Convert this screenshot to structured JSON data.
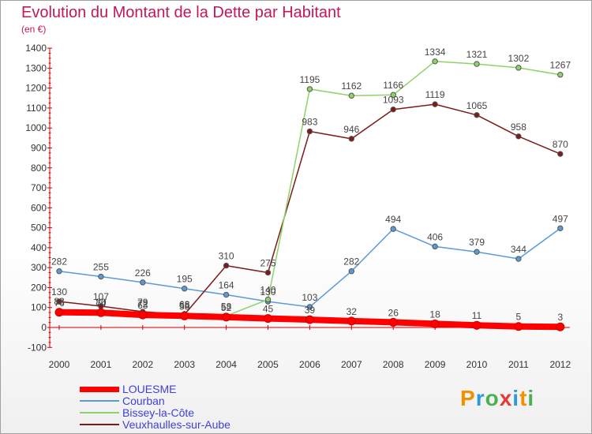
{
  "title": "Evolution du Montant de la Dette par Habitant",
  "subtitle": "(en €)",
  "logo": {
    "text": "Proxiti",
    "colors": [
      "#f29000",
      "#2e9ad7",
      "#4caf50",
      "#e53935",
      "#2e9ad7",
      "#f29000",
      "#4caf50"
    ]
  },
  "chart_data": {
    "type": "line",
    "categories": [
      "2000",
      "2001",
      "2002",
      "2003",
      "2004",
      "2005",
      "2006",
      "2007",
      "2008",
      "2009",
      "2010",
      "2011",
      "2012"
    ],
    "ylim": [
      -100,
      1400
    ],
    "yticks": [
      -100,
      0,
      100,
      200,
      300,
      400,
      500,
      600,
      700,
      800,
      900,
      1000,
      1100,
      1200,
      1300,
      1400
    ],
    "grid": false,
    "legend_position": "bottom-left",
    "series": [
      {
        "name": "LOUESME",
        "color": "#ff0000",
        "values": [
          76,
          74,
          63,
          58,
          52,
          45,
          39,
          32,
          26,
          18,
          11,
          5,
          3
        ]
      },
      {
        "name": "Courban",
        "color": "#5b9bd5",
        "values": [
          282,
          255,
          226,
          195,
          164,
          130,
          103,
          282,
          494,
          406,
          379,
          344,
          497
        ]
      },
      {
        "name": "Bissey-la-Côte",
        "color": "#8fd16a",
        "values": [
          83,
          80,
          72,
          68,
          58,
          140,
          1195,
          1162,
          1166,
          1334,
          1321,
          1302,
          1267
        ]
      },
      {
        "name": "Veuxhaulles-sur-Aube",
        "color": "#7b1b1b",
        "values": [
          130,
          107,
          79,
          65,
          310,
          275,
          983,
          946,
          1093,
          1119,
          1065,
          958,
          870
        ]
      }
    ]
  }
}
